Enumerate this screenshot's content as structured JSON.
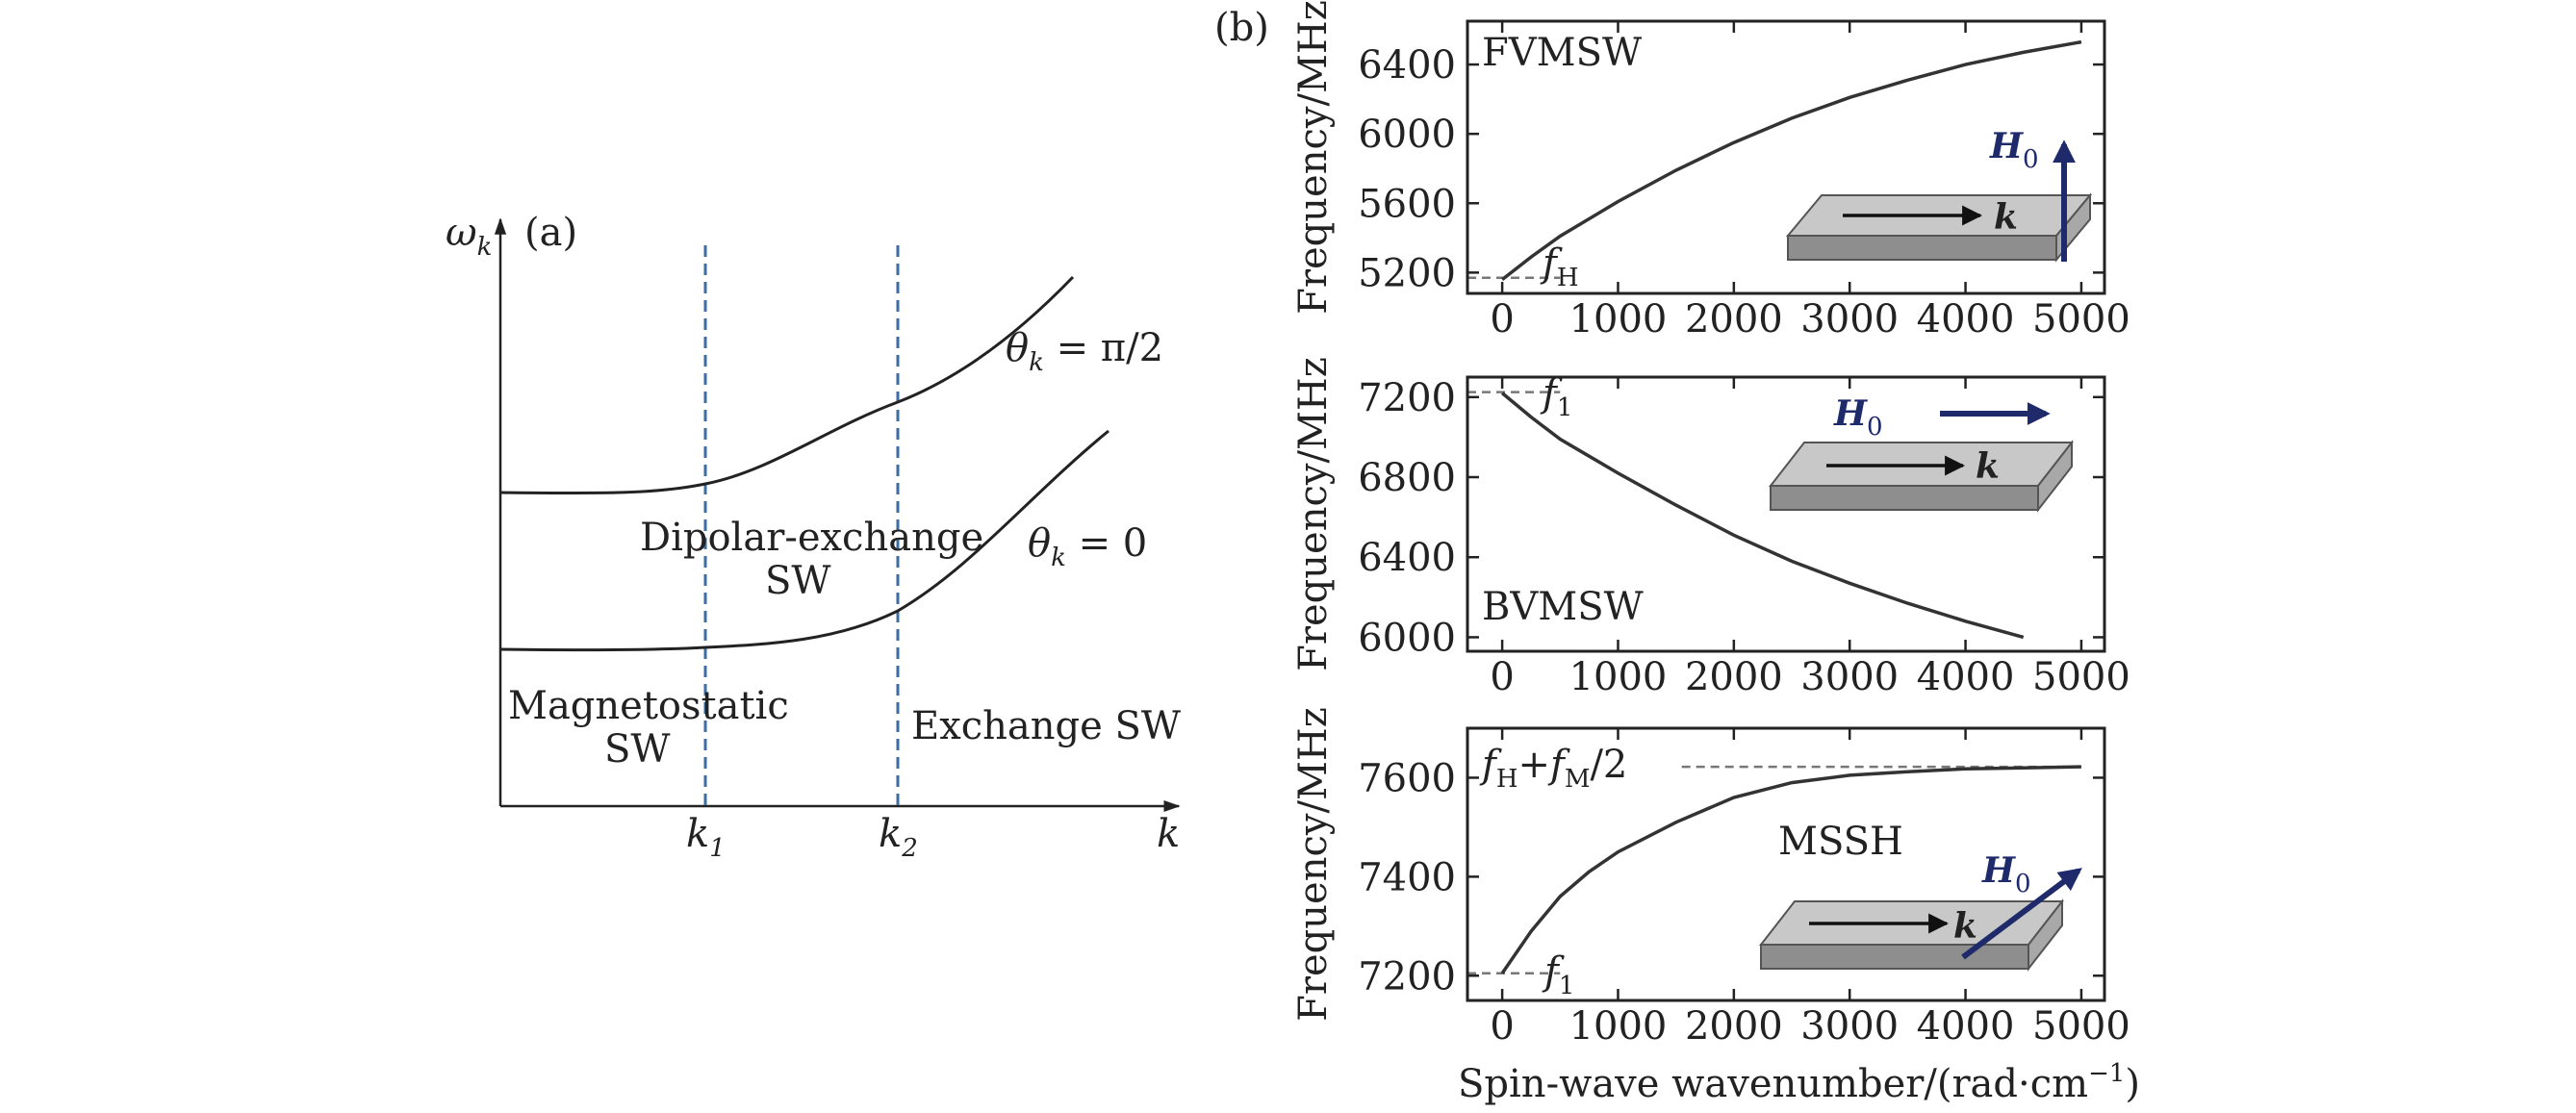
{
  "colors": {
    "curve": "#333333",
    "axis": "#222222",
    "dashed_k": "#3a6ea5",
    "dashed_ref": "#777777",
    "field_arrow": "#1f2a6b",
    "slab_top": "#c8c8c8",
    "slab_front": "#8e8e8e",
    "slab_side": "#a8a8a8"
  },
  "chart_data": [
    {
      "type": "line",
      "panel_label": "(a)",
      "ylabel": "ω",
      "ylabel_sub": "k",
      "xlabel": "k",
      "x_ticks": [
        {
          "main": "k",
          "sub": "1"
        },
        {
          "main": "k",
          "sub": "2"
        }
      ],
      "series": [
        {
          "name": "θk = π/2",
          "main": "θ",
          "sub": "k",
          "rest": " = π/2"
        },
        {
          "name": "θk = 0",
          "main": "θ",
          "sub": "k",
          "rest": " = 0"
        }
      ],
      "regions": {
        "dipolar_line1": "Dipolar-exchange",
        "dipolar_line2": "SW",
        "magnetostatic_line1": "Magnetostatic",
        "magnetostatic_line2": "SW",
        "exchange": "Exchange SW"
      }
    },
    {
      "type": "line",
      "panel_label": "(b)",
      "label": "FVMSW",
      "ylabel": "Frequency/MHz",
      "xlim": [
        -300,
        5200
      ],
      "ylim": [
        5080,
        6650
      ],
      "x_ticks": [
        "0",
        "1000",
        "2000",
        "3000",
        "4000",
        "5000"
      ],
      "y_tick_values": [
        5200,
        5600,
        6000,
        6400
      ],
      "y_ticks": [
        "5200",
        "5600",
        "6000",
        "6400"
      ],
      "x": [
        0,
        250,
        500,
        1000,
        1500,
        2000,
        2500,
        3000,
        3500,
        4000,
        4500,
        5000
      ],
      "y": [
        5160,
        5290,
        5410,
        5610,
        5790,
        5950,
        6090,
        6210,
        6310,
        6400,
        6470,
        6530
      ],
      "ref_value": 5170,
      "ref_label": {
        "main": "f",
        "sub": "H"
      },
      "field_label": {
        "main": "H",
        "sub": "0"
      },
      "k_label": "k",
      "field_direction": "up"
    },
    {
      "type": "line",
      "label": "BVMSW",
      "ylabel": "Frequency/MHz",
      "xlim": [
        -300,
        5200
      ],
      "ylim": [
        5930,
        7300
      ],
      "x_ticks": [
        "0",
        "1000",
        "2000",
        "3000",
        "4000",
        "5000"
      ],
      "y_tick_values": [
        6000,
        6400,
        6800,
        7200
      ],
      "y_ticks": [
        "6000",
        "6400",
        "6800",
        "7200"
      ],
      "x": [
        0,
        250,
        500,
        1000,
        1500,
        2000,
        2500,
        3000,
        3500,
        4000,
        4500
      ],
      "y": [
        7220,
        7100,
        6990,
        6820,
        6660,
        6510,
        6380,
        6270,
        6170,
        6080,
        6000
      ],
      "ref_value": 7225,
      "ref_label": {
        "main": "f",
        "sub": "1"
      },
      "field_label": {
        "main": "H",
        "sub": "0"
      },
      "k_label": "k",
      "field_direction": "right"
    },
    {
      "type": "line",
      "label": "MSSH",
      "ylabel": "Frequency/MHz",
      "xlabel": "Spin-wave wavenumber/(rad·cm",
      "xlabel_sup": "−1",
      "xlabel_close": ")",
      "xlim": [
        -300,
        5200
      ],
      "ylim": [
        7150,
        7700
      ],
      "x_ticks": [
        "0",
        "1000",
        "2000",
        "3000",
        "4000",
        "5000"
      ],
      "y_tick_values": [
        7200,
        7400,
        7600
      ],
      "y_ticks": [
        "7200",
        "7400",
        "7600"
      ],
      "x": [
        0,
        250,
        500,
        750,
        1000,
        1500,
        2000,
        2500,
        3000,
        3500,
        4000,
        4500,
        5000
      ],
      "y": [
        7205,
        7290,
        7360,
        7410,
        7450,
        7510,
        7560,
        7590,
        7605,
        7612,
        7618,
        7620,
        7622
      ],
      "ref_value": 7205,
      "ref_label": {
        "main": "f",
        "sub": "1"
      },
      "asymptote_value": 7622,
      "asymptote_label": {
        "a": "f",
        "a_sub": "H",
        "mid": "+",
        "b": "f",
        "b_sub": "M",
        "tail": "/2"
      },
      "field_label": {
        "main": "H",
        "sub": "0"
      },
      "k_label": "k",
      "field_direction": "diagonal"
    }
  ]
}
